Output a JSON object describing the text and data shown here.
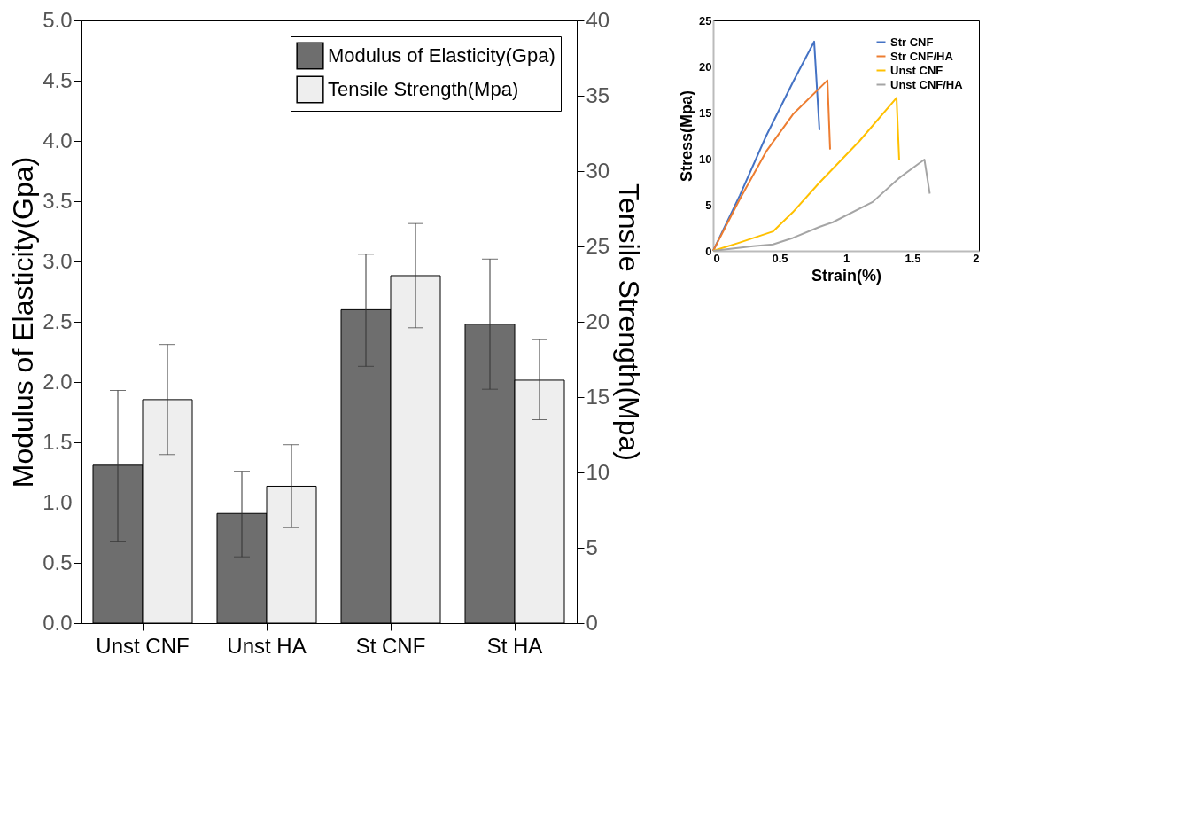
{
  "chart_data": [
    {
      "type": "bar",
      "ylabel": "Modulus of Elasticity(Gpa)",
      "y2label": "Tensile Strength(Mpa)",
      "categories": [
        "Unst CNF",
        "Unst HA",
        "St CNF",
        "St HA"
      ],
      "series": [
        {
          "name": "Modulus of Elasticity(Gpa)",
          "color": "#6e6e6e",
          "axis": "y",
          "values": [
            1.31,
            0.91,
            2.6,
            2.48
          ],
          "errors": [
            [
              0.68,
              1.93
            ],
            [
              0.55,
              1.26
            ],
            [
              2.13,
              3.06
            ],
            [
              1.94,
              3.02
            ]
          ]
        },
        {
          "name": "Tensile Strength(Mpa)",
          "color": "#eeeeee",
          "axis": "y2",
          "values": [
            14.83,
            9.09,
            23.06,
            16.12
          ],
          "errors": [
            [
              11.19,
              18.49
            ],
            [
              6.34,
              11.84
            ],
            [
              19.6,
              26.52
            ],
            [
              13.5,
              18.81
            ]
          ]
        }
      ],
      "ylim": [
        0,
        5
      ],
      "yticks": [
        {
          "value": 0,
          "label": "0.0"
        },
        0.5,
        {
          "value": 1,
          "label": "1.0"
        },
        1.5,
        {
          "value": 2,
          "label": "2.0"
        },
        2.5,
        {
          "value": 3,
          "label": "3.0"
        },
        3.5,
        {
          "value": 4,
          "label": "4.0"
        },
        4.5,
        {
          "value": 5,
          "label": "5.0"
        }
      ],
      "y2lim": [
        0,
        40
      ],
      "y2ticks": [
        0,
        5,
        10,
        15,
        20,
        25,
        30,
        35,
        40
      ],
      "legend": "top right",
      "grid": false
    },
    {
      "type": "line",
      "xlabel": "Strain(%)",
      "ylabel": "Stress(Mpa)",
      "series": [
        {
          "name": "Str CNF",
          "color": "#4472c4",
          "x": [
            0,
            0.2,
            0.4,
            0.6,
            0.76,
            0.8
          ],
          "values": [
            0,
            6,
            12.5,
            18.3,
            22.7,
            13.1
          ]
        },
        {
          "name": "Str CNF/HA",
          "color": "#ed7d31",
          "x": [
            0,
            0.2,
            0.4,
            0.6,
            0.86,
            0.88
          ],
          "values": [
            0,
            5.6,
            10.8,
            14.8,
            18.5,
            11.0
          ]
        },
        {
          "name": "Unst CNF",
          "color": "#ffc000",
          "x": [
            0,
            0.2,
            0.45,
            0.6,
            0.8,
            1.1,
            1.38,
            1.4
          ],
          "values": [
            0,
            0.9,
            2.1,
            4.2,
            7.4,
            11.9,
            16.6,
            9.8
          ]
        },
        {
          "name": "Unst CNF/HA",
          "color": "#a5a5a5",
          "x": [
            0,
            0.3,
            0.45,
            0.6,
            0.8,
            0.9,
            1.2,
            1.4,
            1.55,
            1.59,
            1.63
          ],
          "values": [
            0,
            0.5,
            0.7,
            1.4,
            2.6,
            3.1,
            5.3,
            7.9,
            9.5,
            9.9,
            6.2
          ]
        }
      ],
      "xlim": [
        0,
        2
      ],
      "xticks": [
        0,
        0.5,
        1,
        1.5,
        2
      ],
      "ylim": [
        0,
        25
      ],
      "yticks": [
        0,
        5,
        10,
        15,
        20,
        25
      ],
      "legend": "top right",
      "grid": false
    }
  ]
}
